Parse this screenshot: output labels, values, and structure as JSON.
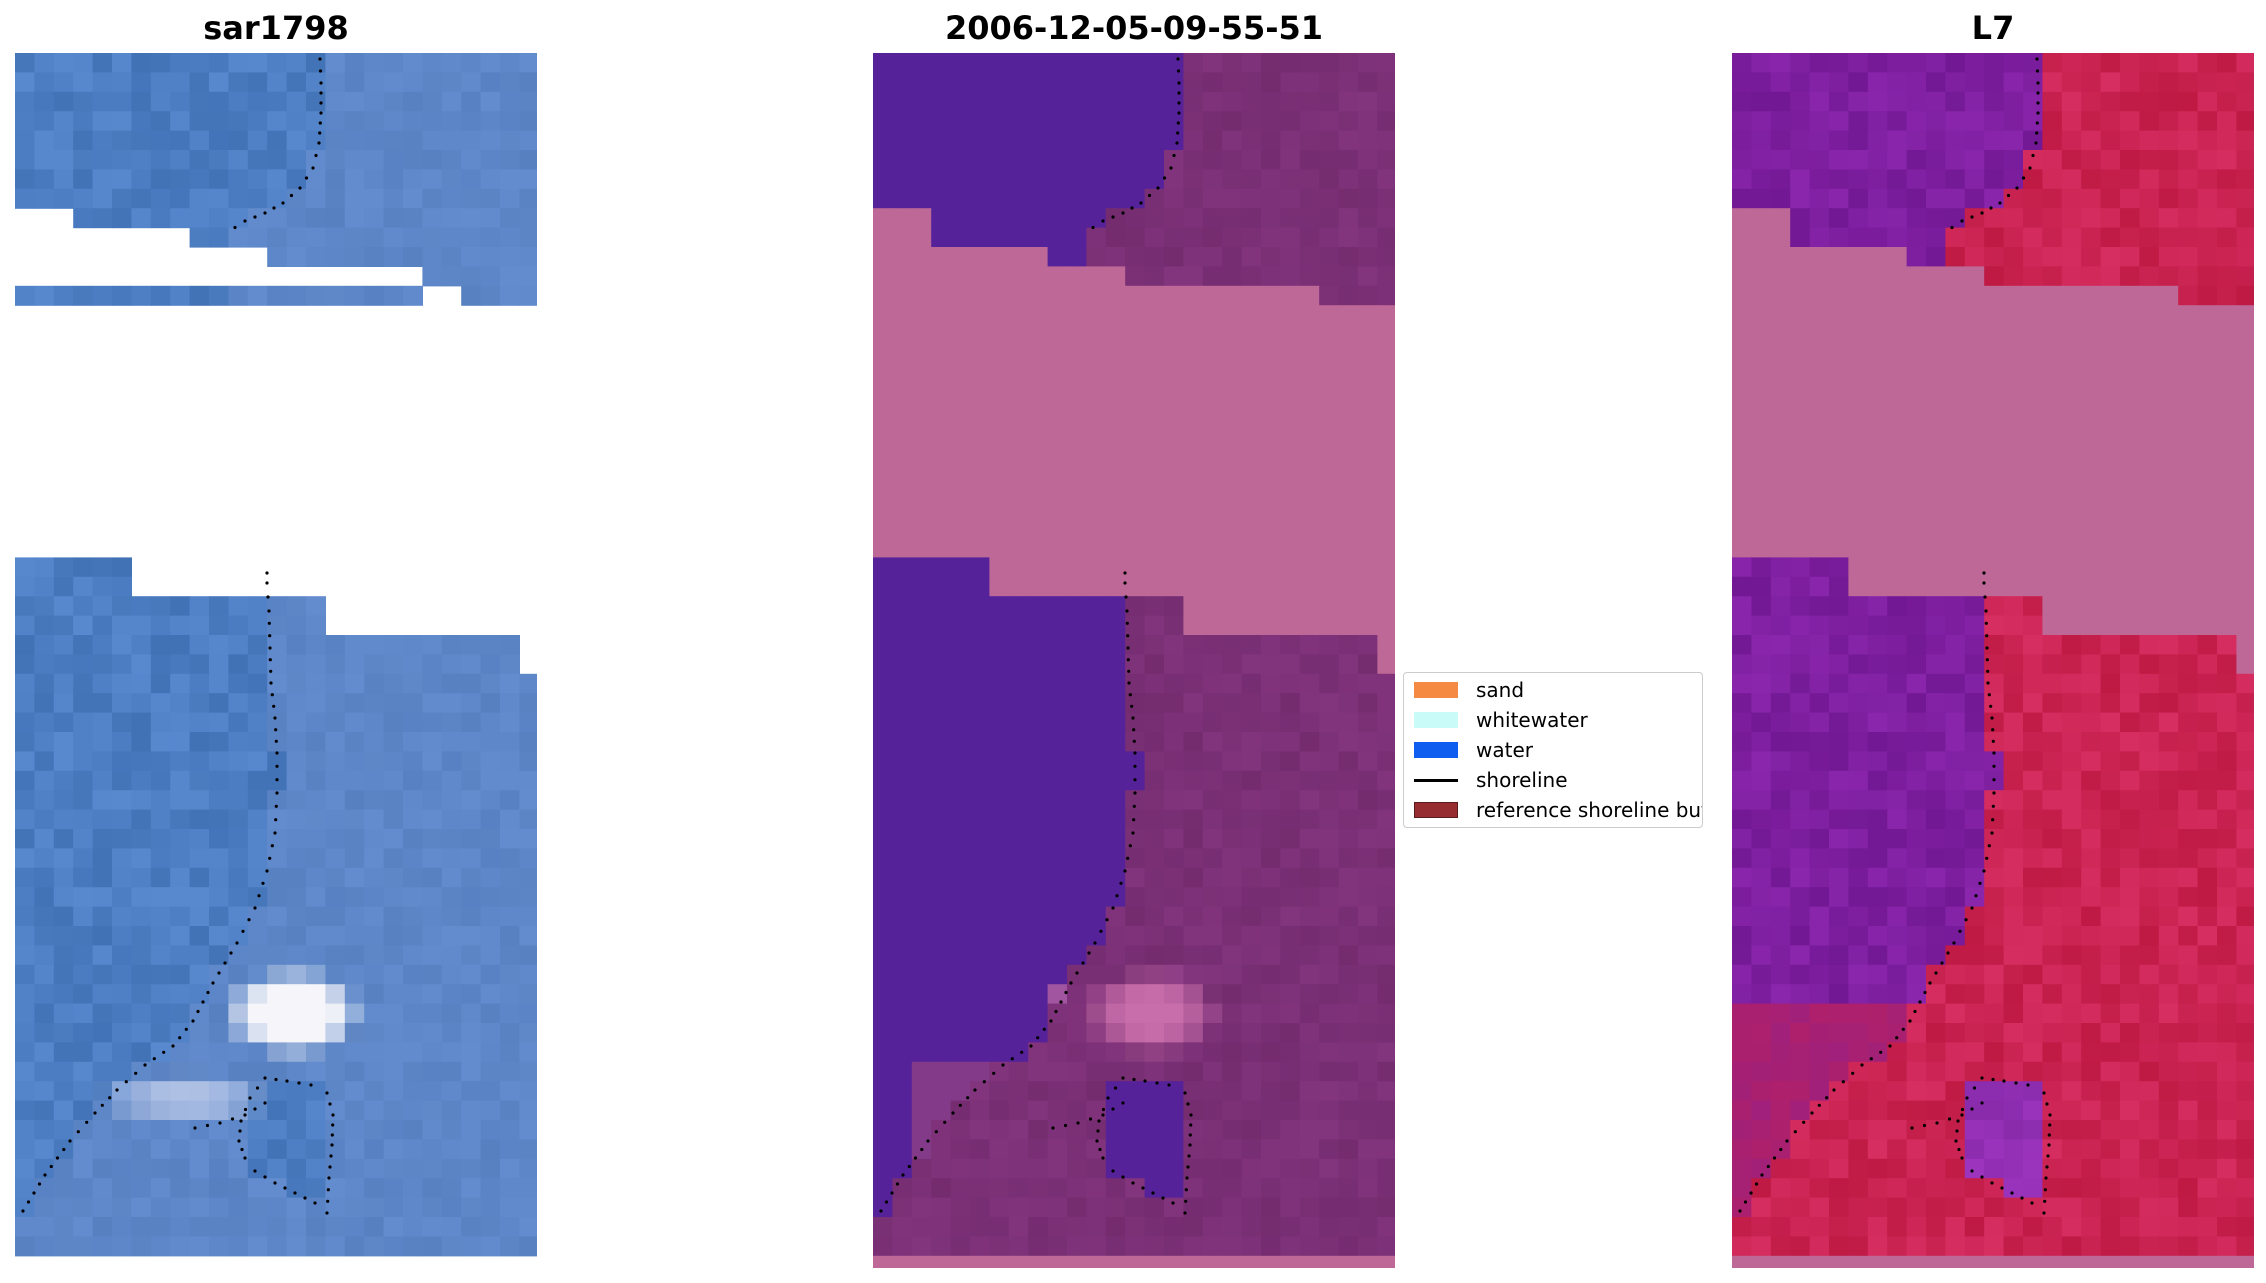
{
  "panels": [
    {
      "title": "sar1798"
    },
    {
      "title": "2006-12-05-09-55-51"
    },
    {
      "title": "L7"
    }
  ],
  "legend": {
    "items": [
      {
        "label": "sand",
        "color": "#f58a42"
      },
      {
        "label": "whitewater",
        "color": "#c9fcf9"
      },
      {
        "label": "water",
        "color": "#0f5ef0"
      },
      {
        "label": "shoreline",
        "color": "#000000"
      },
      {
        "label": "reference shoreline buffer",
        "color": "#962d30"
      }
    ]
  },
  "colors": {
    "rgb_water": "#4a78c2",
    "no_data": "#ffffff",
    "classified_water": "#55229a",
    "reference_buffer": "#bd6896",
    "classified_land": "#7a3075",
    "mndwi_water": "#7e20a0",
    "mndwi_land": "#c8204e",
    "mndwi_buffer": "#bd6896"
  }
}
